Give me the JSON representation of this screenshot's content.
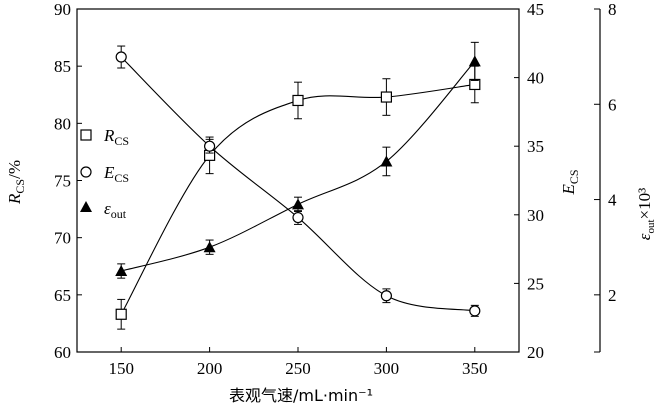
{
  "chart_data": {
    "type": "line",
    "x": [
      150,
      200,
      250,
      300,
      350
    ],
    "xlabel": "表观气速/mL·min⁻¹",
    "x_ticks": [
      "150",
      "200",
      "250",
      "300",
      "350"
    ],
    "xlim": [
      125,
      375
    ],
    "axes": {
      "left": {
        "label_main": "R",
        "label_sub": "CS",
        "label_unit": "/%",
        "ylim": [
          60,
          90
        ],
        "ticks": [
          "60",
          "65",
          "70",
          "75",
          "80",
          "85",
          "90"
        ]
      },
      "right1": {
        "label_main": "E",
        "label_sub": "CS",
        "ylim": [
          20,
          45
        ],
        "ticks": [
          "20",
          "25",
          "30",
          "35",
          "40",
          "45"
        ]
      },
      "right2": {
        "label_main": "ε",
        "label_sub": "out",
        "label_suffix": "×10³",
        "ylim": [
          0.8,
          8
        ],
        "ticks": [
          "2",
          "4",
          "6",
          "8"
        ]
      }
    },
    "series": [
      {
        "name_main": "R",
        "name_sub": "CS",
        "marker": "square",
        "axis": "left",
        "values": [
          63.3,
          77.2,
          82.0,
          82.3,
          83.4
        ],
        "errors": [
          1.3,
          1.6,
          1.6,
          1.6,
          1.6
        ]
      },
      {
        "name_main": "E",
        "name_sub": "CS",
        "marker": "circle",
        "axis": "right1",
        "values": [
          41.5,
          35.0,
          29.8,
          24.1,
          23.0
        ],
        "errors": [
          0.8,
          0.5,
          0.5,
          0.5,
          0.4
        ]
      },
      {
        "name_main": "ε",
        "name_sub": "out",
        "marker": "triangle",
        "axis": "right2",
        "values": [
          2.5,
          3.0,
          3.9,
          4.8,
          6.9
        ],
        "errors": [
          0.15,
          0.15,
          0.15,
          0.3,
          0.4
        ]
      }
    ],
    "legend_position": "left-middle",
    "grid": false
  }
}
